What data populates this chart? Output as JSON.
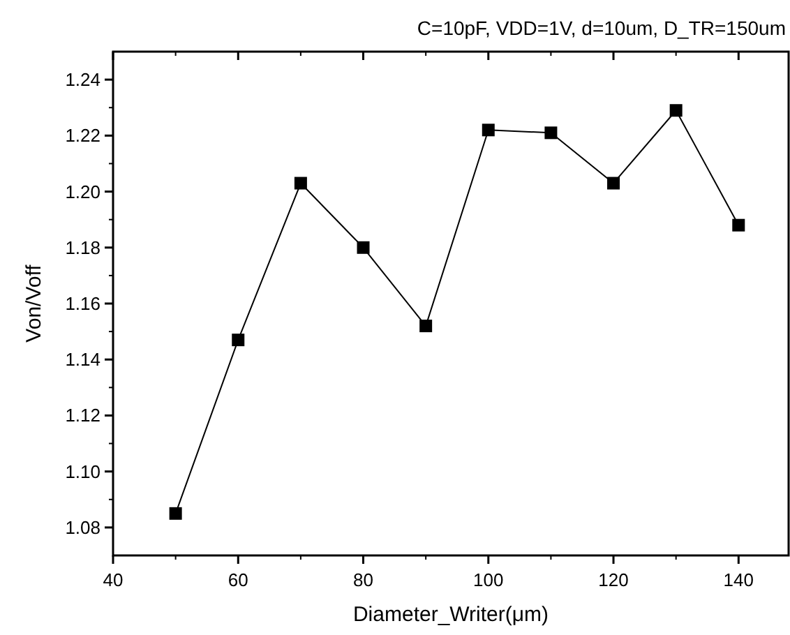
{
  "chart_data": {
    "type": "line",
    "title": "C=10pF, VDD=1V, d=10um,  D_TR=150um",
    "xlabel": "Diameter_Writer(μm)",
    "ylabel": "Von/Voff",
    "x": [
      50,
      60,
      70,
      80,
      90,
      100,
      110,
      120,
      130,
      140
    ],
    "series": [
      {
        "color": "#000000",
        "values": [
          1.085,
          1.147,
          1.203,
          1.18,
          1.152,
          1.222,
          1.221,
          1.203,
          1.229,
          1.188
        ]
      }
    ],
    "xlim": [
      40,
      148
    ],
    "xticks": [
      40,
      60,
      80,
      100,
      120,
      140
    ],
    "ylim": [
      1.07,
      1.25
    ],
    "yticks": [
      1.08,
      {
        "value": 1.1,
        "label": "1.10"
      },
      1.12,
      1.14,
      1.16,
      1.18,
      {
        "value": 1.2,
        "label": "1.20"
      },
      1.22,
      1.24
    ],
    "marker": "square",
    "line_style": "solid",
    "grid": false
  }
}
